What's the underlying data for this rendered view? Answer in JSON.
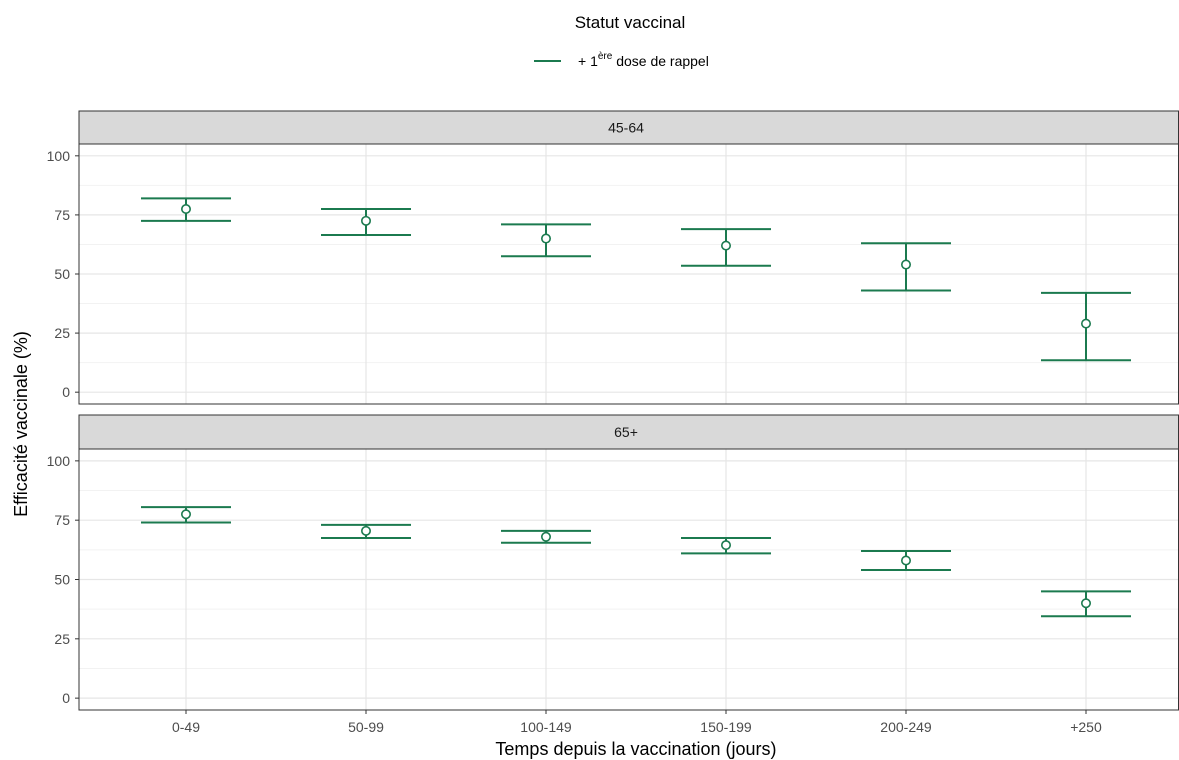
{
  "chart_data": {
    "type": "errorbar",
    "legend_title": "Statut vaccinal",
    "legend_position": "top",
    "series": [
      {
        "name_prefix": "+ 1",
        "name_superscript": "ère",
        "name_suffix": " dose de rappel",
        "color": "#1b7a4f"
      }
    ],
    "categories": [
      "0-49",
      "50-99",
      "100-149",
      "150-199",
      "200-249",
      "+250"
    ],
    "xlabel": "Temps depuis la vaccination (jours)",
    "ylabel": "Efficacité vaccinale (%)",
    "ylim": [
      -5,
      105
    ],
    "yticks": [
      0,
      25,
      50,
      75,
      100
    ],
    "grid": true,
    "panels": [
      {
        "title": "45-64",
        "points": [
          {
            "category": "0-49",
            "estimate": 77.5,
            "lower": 72.5,
            "upper": 82
          },
          {
            "category": "50-99",
            "estimate": 72.5,
            "lower": 66.5,
            "upper": 77.5
          },
          {
            "category": "100-149",
            "estimate": 65,
            "lower": 57.5,
            "upper": 71
          },
          {
            "category": "150-199",
            "estimate": 62,
            "lower": 53.5,
            "upper": 69
          },
          {
            "category": "200-249",
            "estimate": 54,
            "lower": 43,
            "upper": 63
          },
          {
            "category": "+250",
            "estimate": 29,
            "lower": 13.5,
            "upper": 42
          }
        ]
      },
      {
        "title": "65+",
        "points": [
          {
            "category": "0-49",
            "estimate": 77.5,
            "lower": 74,
            "upper": 80.5
          },
          {
            "category": "50-99",
            "estimate": 70.5,
            "lower": 67.5,
            "upper": 73
          },
          {
            "category": "100-149",
            "estimate": 68,
            "lower": 65.5,
            "upper": 70.5
          },
          {
            "category": "150-199",
            "estimate": 64.5,
            "lower": 61,
            "upper": 67.5
          },
          {
            "category": "200-249",
            "estimate": 58,
            "lower": 54,
            "upper": 62
          },
          {
            "category": "+250",
            "estimate": 40,
            "lower": 34.5,
            "upper": 45
          }
        ]
      }
    ]
  }
}
